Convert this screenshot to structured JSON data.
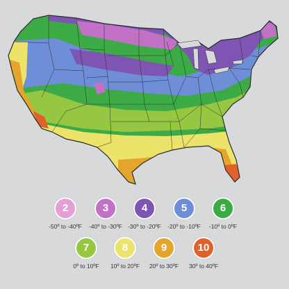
{
  "map": {
    "region": "Contiguous United States"
  },
  "legend": [
    {
      "zone": "2",
      "range": "-50º to -40ºF",
      "color": "#e59ed6"
    },
    {
      "zone": "3",
      "range": "-40º to -30ºF",
      "color": "#c272c6"
    },
    {
      "zone": "4",
      "range": "-30º to -20ºF",
      "color": "#7e55b3"
    },
    {
      "zone": "5",
      "range": "-20º to -10ºF",
      "color": "#6f8ed8"
    },
    {
      "zone": "6",
      "range": "-10º to 0ºF",
      "color": "#3caa45"
    },
    {
      "zone": "7",
      "range": "0º to 10ºF",
      "color": "#95c742"
    },
    {
      "zone": "8",
      "range": "10º to 20ºF",
      "color": "#ece46a"
    },
    {
      "zone": "9",
      "range": "20º to 30ºF",
      "color": "#e3a52b"
    },
    {
      "zone": "10",
      "range": "30º to 40ºF",
      "color": "#e0612a"
    }
  ]
}
